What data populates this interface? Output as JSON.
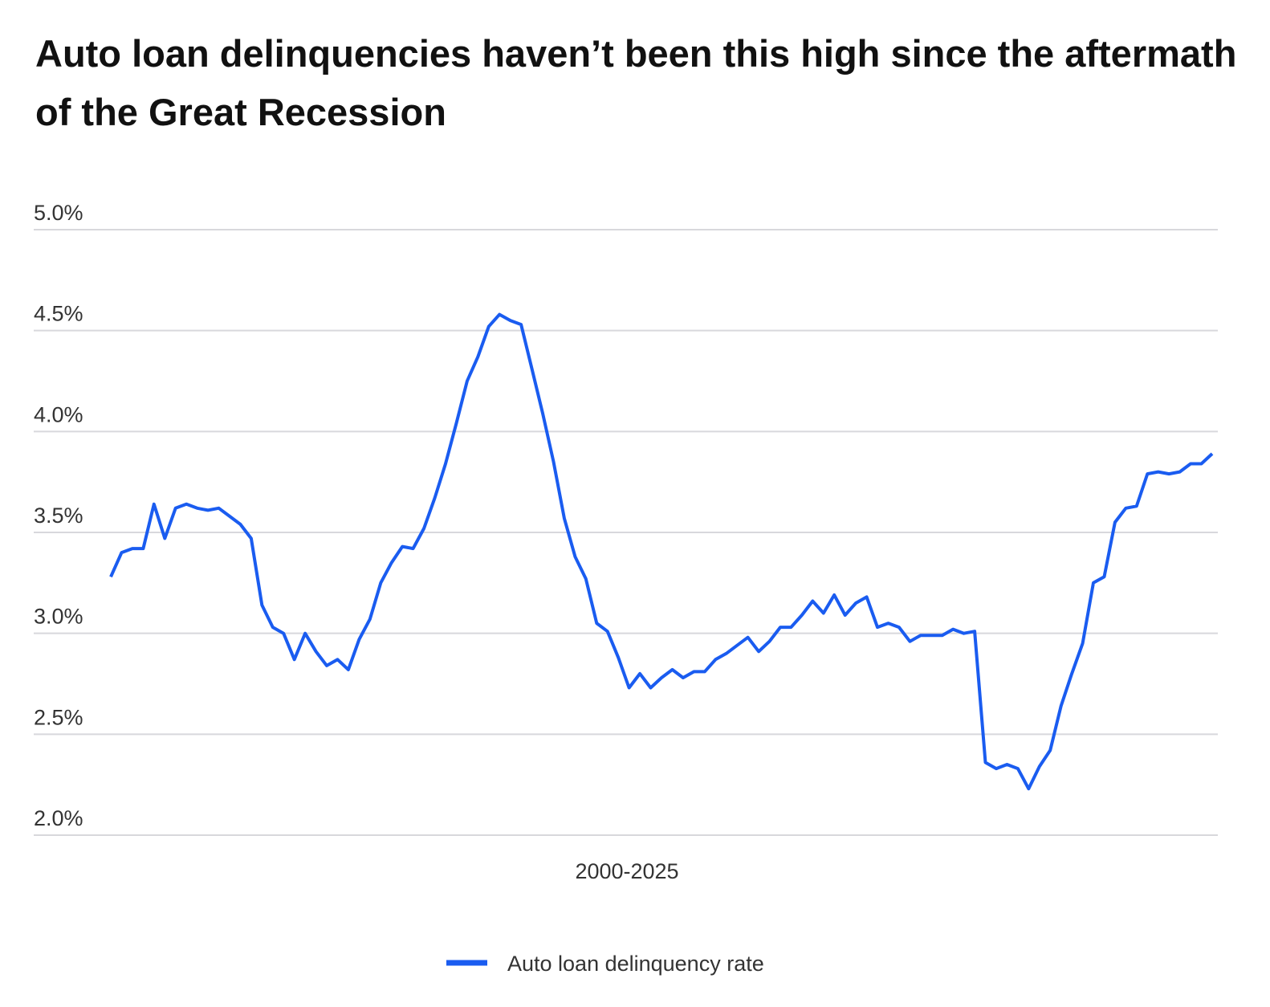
{
  "chart_data": {
    "type": "line",
    "title": "Auto loan delinquencies haven’t been this high since the aftermath of the Great Recession",
    "x_label": "2000-2025",
    "series": [
      {
        "name": "Auto loan delinquency rate",
        "color": "#1a5cf0",
        "values": [
          3.28,
          3.4,
          3.42,
          3.42,
          3.64,
          3.47,
          3.62,
          3.64,
          3.62,
          3.61,
          3.62,
          3.58,
          3.54,
          3.47,
          3.14,
          3.03,
          3.0,
          2.87,
          3.0,
          2.91,
          2.84,
          2.87,
          2.82,
          2.97,
          3.07,
          3.25,
          3.35,
          3.43,
          3.42,
          3.52,
          3.67,
          3.84,
          4.04,
          4.25,
          4.37,
          4.52,
          4.58,
          4.55,
          4.53,
          4.31,
          4.09,
          3.85,
          3.57,
          3.38,
          3.27,
          3.05,
          3.01,
          2.88,
          2.73,
          2.8,
          2.73,
          2.78,
          2.82,
          2.78,
          2.81,
          2.81,
          2.87,
          2.9,
          2.94,
          2.98,
          2.91,
          2.96,
          3.03,
          3.03,
          3.09,
          3.16,
          3.1,
          3.19,
          3.09,
          3.15,
          3.18,
          3.03,
          3.05,
          3.03,
          2.96,
          2.99,
          2.99,
          2.99,
          3.02,
          3.0,
          3.01,
          2.36,
          2.33,
          2.35,
          2.33,
          2.23,
          2.34,
          2.42,
          2.64,
          2.8,
          2.95,
          3.25,
          3.28,
          3.55,
          3.62,
          3.63,
          3.79,
          3.8,
          3.79,
          3.8,
          3.84,
          3.84,
          3.89
        ]
      }
    ],
    "ylim": [
      2,
      5
    ],
    "yticks": [
      {
        "value": 2,
        "label": "2.0%"
      },
      {
        "value": 2.5,
        "label": "2.5%"
      },
      {
        "value": 3,
        "label": "3.0%"
      },
      {
        "value": 3.5,
        "label": "3.5%"
      },
      {
        "value": 4,
        "label": "4.0%"
      },
      {
        "value": 4.5,
        "label": "4.5%"
      },
      {
        "value": 5,
        "label": "5.0%"
      }
    ],
    "grid": true,
    "legend": "bottom"
  }
}
